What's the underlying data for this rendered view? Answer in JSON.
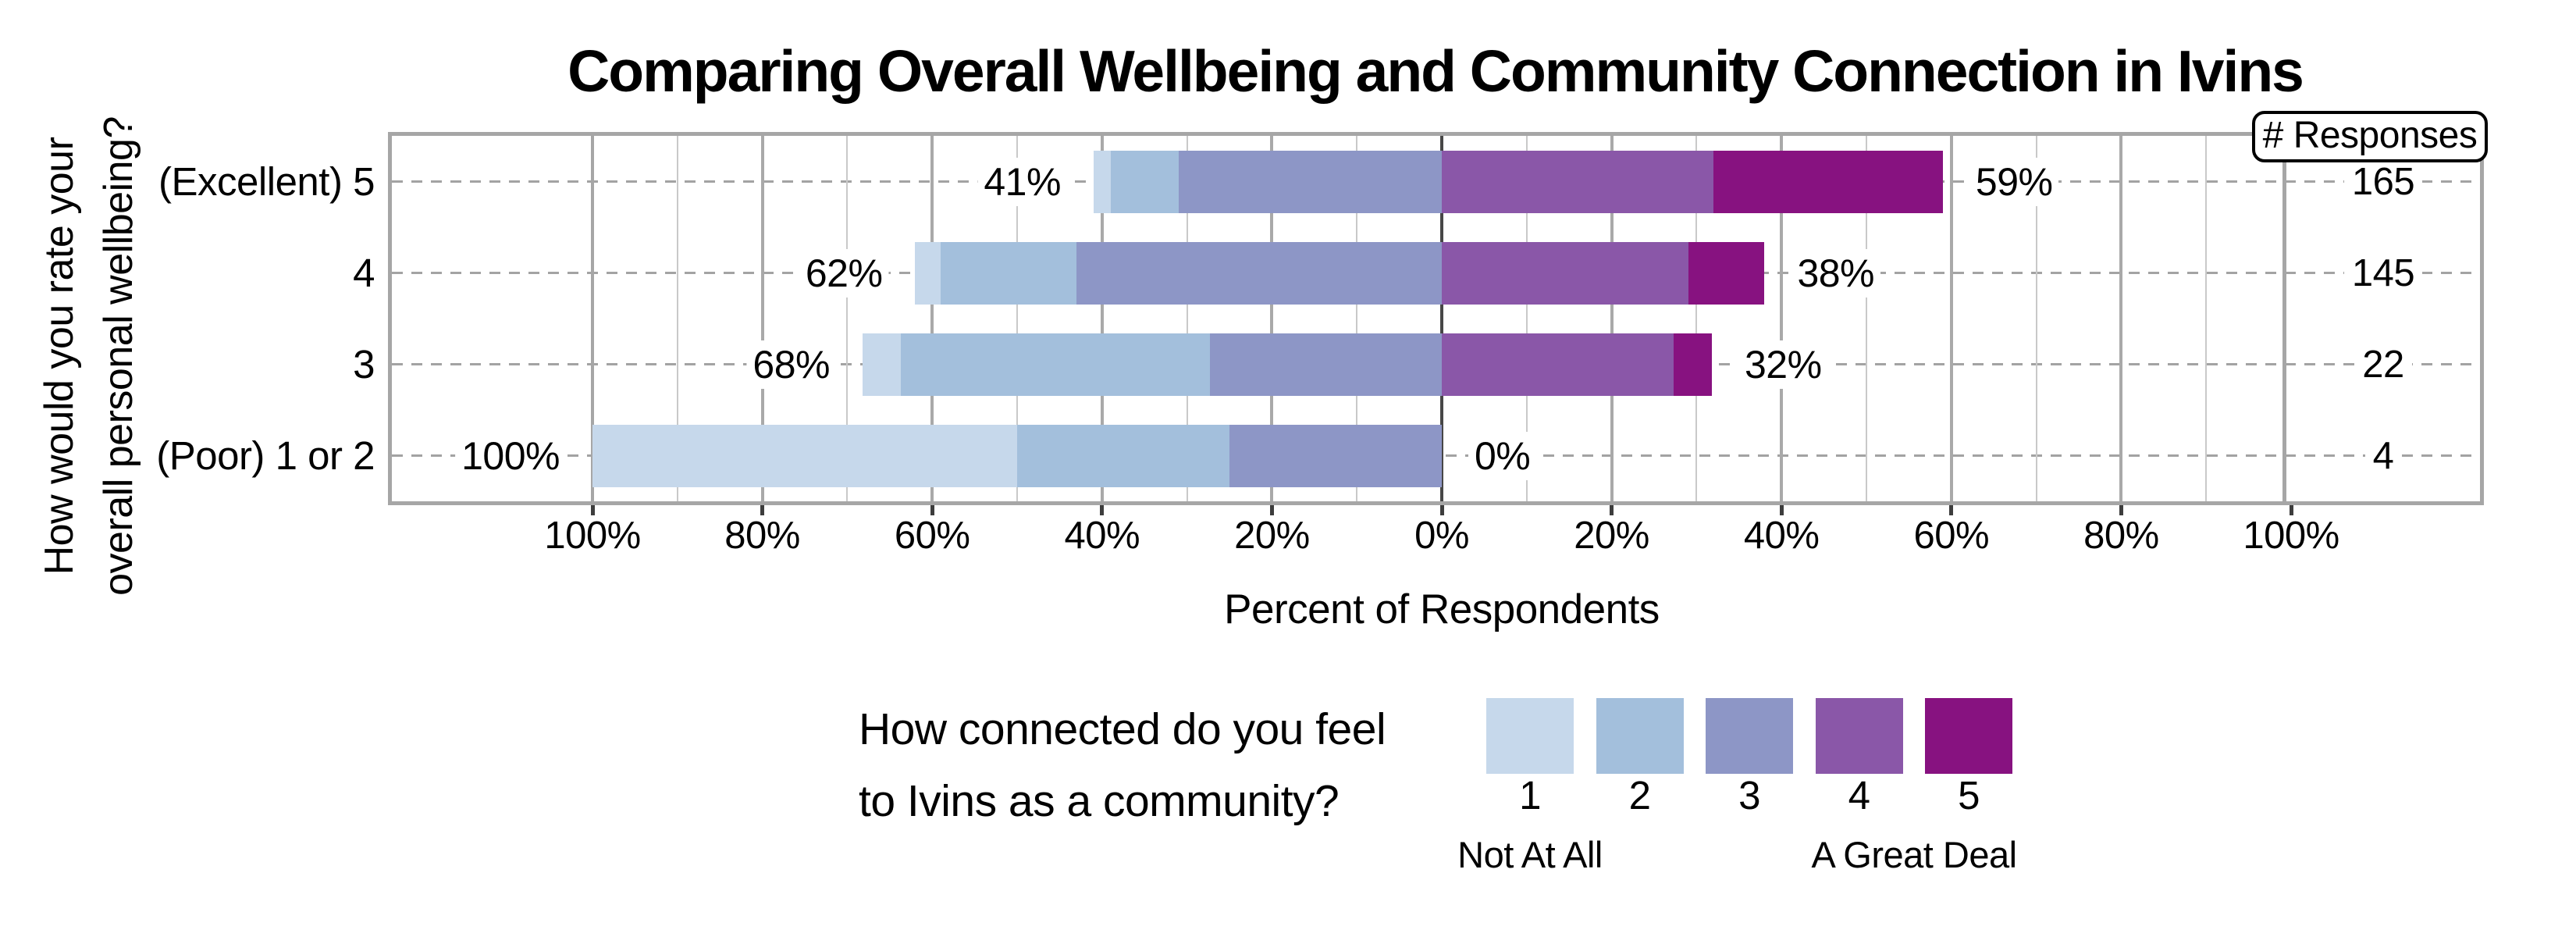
{
  "title": "Comparing Overall Wellbeing and Community Connection in Ivins",
  "axes": {
    "y_title_line1": "How would you rate your",
    "y_title_line2": "overall personal wellbeing?",
    "x_title": "Percent of Respondents"
  },
  "responses_header": "# Responses",
  "legend": {
    "question_line1": "How connected do you feel",
    "question_line2": "to Ivins as a community?",
    "levels": [
      "1",
      "2",
      "3",
      "4",
      "5"
    ],
    "low_label": "Not At All",
    "high_label": "A Great Deal"
  },
  "chart_data": {
    "type": "bar",
    "subtype": "diverging_stacked_likert",
    "title": "Comparing Overall Wellbeing and Community Connection in Ivins",
    "xlabel": "Percent of Respondents",
    "ylabel": "How would you rate your overall personal wellbeing?",
    "legend_title": "How connected do you feel to Ivins as a community?",
    "stack_levels": [
      "1",
      "2",
      "3",
      "4",
      "5"
    ],
    "level_colors": [
      "#c6d8eb",
      "#a3bfdc",
      "#8d96c6",
      "#8a57a8",
      "#871280"
    ],
    "left_side_levels": [
      "1",
      "2",
      "3"
    ],
    "right_side_levels": [
      "4",
      "5"
    ],
    "categories": [
      "(Excellent) 5",
      "4",
      "3",
      "(Poor) 1 or 2"
    ],
    "rows": [
      {
        "category": "(Excellent) 5",
        "segments_pct": [
          2,
          8,
          31,
          32,
          27
        ],
        "left_total_label": "41%",
        "right_total_label": "59%",
        "n_responses": 165
      },
      {
        "category": "4",
        "segments_pct": [
          3,
          16,
          43,
          29,
          9
        ],
        "left_total_label": "62%",
        "right_total_label": "38%",
        "n_responses": 145
      },
      {
        "category": "3",
        "segments_pct": [
          4.5,
          36.4,
          27.3,
          27.3,
          4.5
        ],
        "left_total_label": "68%",
        "right_total_label": "32%",
        "n_responses": 22
      },
      {
        "category": "(Poor) 1 or 2",
        "segments_pct": [
          50,
          25,
          25,
          0,
          0
        ],
        "left_total_label": "100%",
        "right_total_label": "0%",
        "n_responses": 4
      }
    ],
    "x_tick_labels": [
      "100%",
      "80%",
      "60%",
      "40%",
      "20%",
      "0%",
      "20%",
      "40%",
      "60%",
      "80%",
      "100%"
    ],
    "x_range_pct": [
      -100,
      100
    ],
    "gridlines": {
      "minor_step_pct": 10,
      "major_step_pct": 20,
      "zero_line": true
    },
    "frame_color": "#a6a6a6",
    "zero_line_color": "#474747"
  }
}
